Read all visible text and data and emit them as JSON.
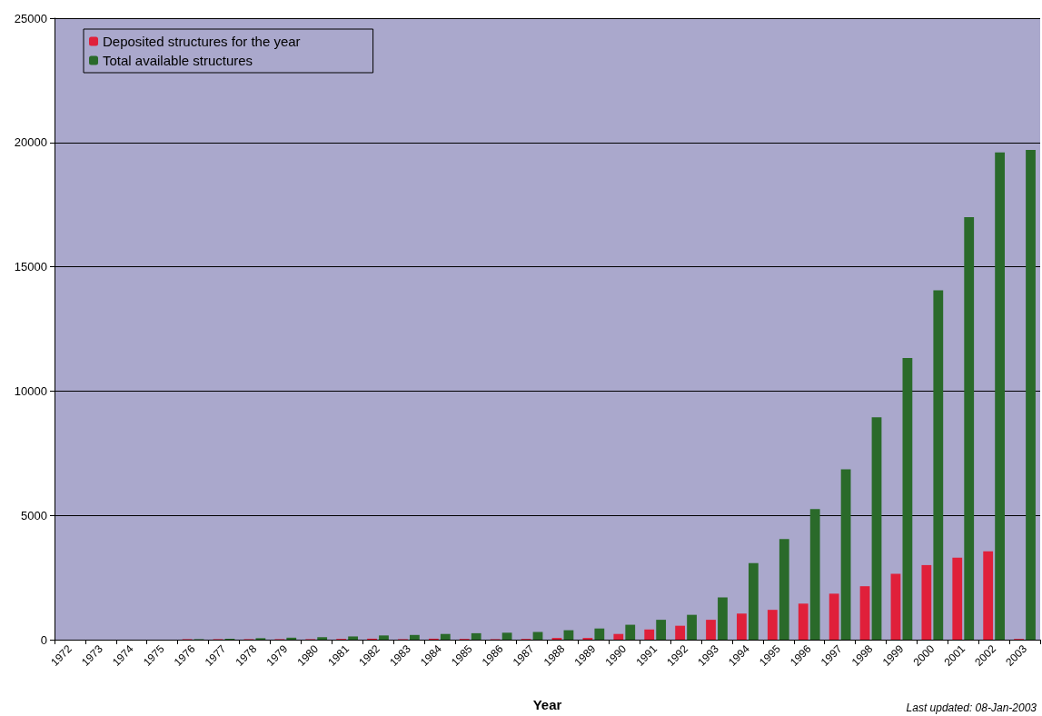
{
  "chart_data": {
    "type": "bar",
    "xlabel": "Year",
    "categories": [
      "1972",
      "1973",
      "1974",
      "1975",
      "1976",
      "1977",
      "1978",
      "1979",
      "1980",
      "1981",
      "1982",
      "1983",
      "1984",
      "1985",
      "1986",
      "1987",
      "1988",
      "1989",
      "1990",
      "1991",
      "1992",
      "1993",
      "1994",
      "1995",
      "1996",
      "1997",
      "1998",
      "1999",
      "2000",
      "2001",
      "2002",
      "2003"
    ],
    "series": [
      {
        "name": "Deposited structures for the year",
        "color": "#e0203a",
        "values": [
          0,
          0,
          0,
          0,
          20,
          20,
          20,
          20,
          20,
          30,
          40,
          20,
          40,
          30,
          20,
          30,
          70,
          70,
          230,
          410,
          560,
          800,
          1050,
          1200,
          1450,
          1850,
          2150,
          2650,
          3000,
          3300,
          3550,
          30
        ]
      },
      {
        "name": "Total available structures",
        "color": "#2a6a2a",
        "values": [
          0,
          0,
          0,
          0,
          20,
          40,
          60,
          80,
          100,
          130,
          170,
          190,
          230,
          260,
          280,
          310,
          380,
          450,
          600,
          800,
          1000,
          1700,
          3080,
          4050,
          5250,
          6850,
          8950,
          11330,
          14050,
          17000,
          19600,
          19700
        ]
      }
    ],
    "ylim": [
      0,
      25000
    ],
    "yticks": [
      0,
      5000,
      10000,
      15000,
      20000,
      25000
    ],
    "grid": "y",
    "legend": "top left",
    "annotations": [
      "Last updated: 08-Jan-2003"
    ]
  }
}
